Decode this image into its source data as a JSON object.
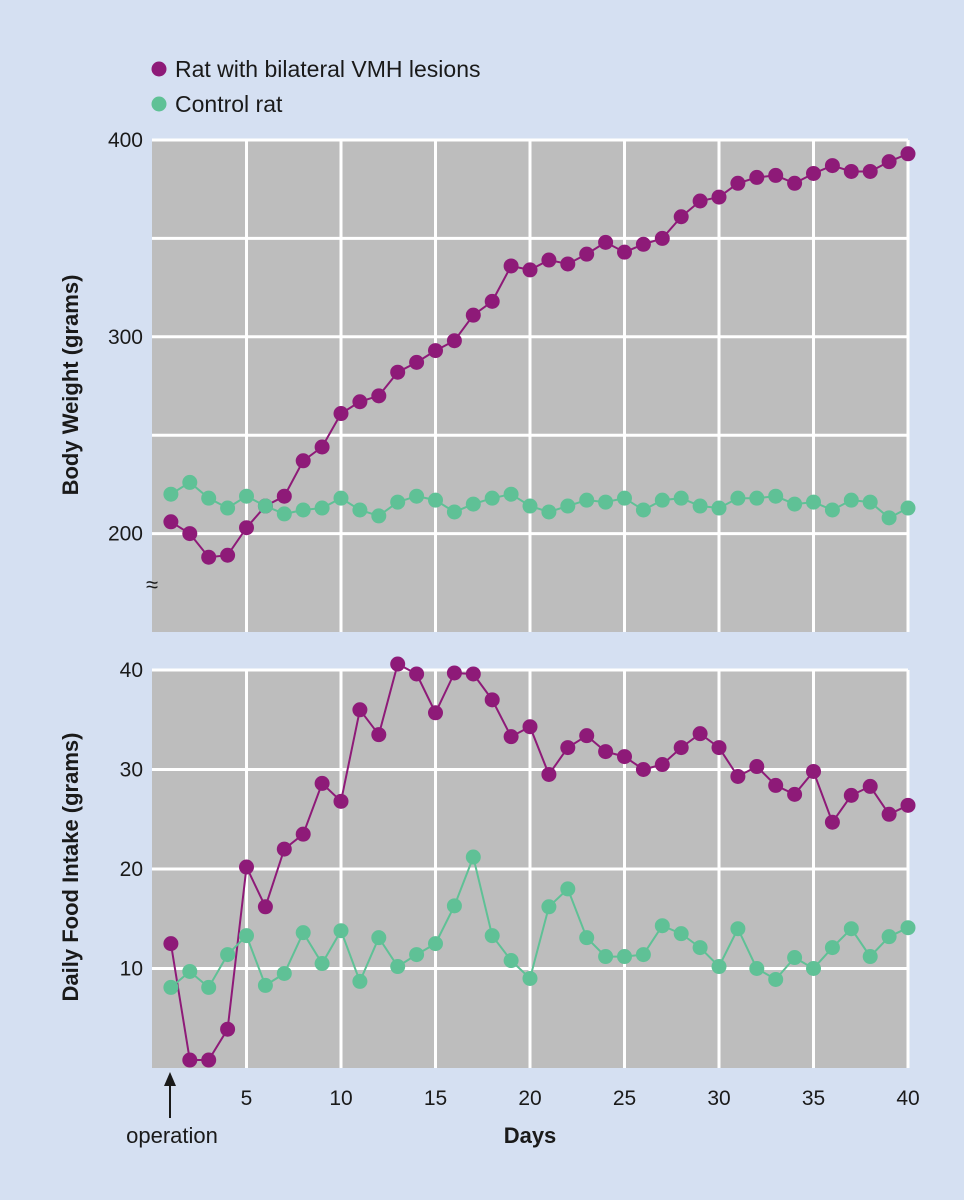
{
  "legend": {
    "vmh": "Rat with bilateral VMH lesions",
    "control": "Control rat"
  },
  "colors": {
    "vmh": "#8e1a78",
    "control": "#5fc196",
    "plot_bg": "#bdbdbd",
    "grid": "#ffffff",
    "page_bg": "#d5e0f2"
  },
  "annotations": {
    "operation": "operation",
    "axis_break": "≈"
  },
  "chart_data": [
    {
      "type": "line",
      "title": "",
      "xlabel": "",
      "ylabel": "Body Weight (grams)",
      "xlim": [
        0,
        40
      ],
      "ylim": [
        150,
        400
      ],
      "yticks": [
        200,
        300,
        400
      ],
      "y_gridlines": [
        200,
        250,
        300,
        350,
        400
      ],
      "x_gridlines": [
        5,
        10,
        15,
        20,
        25,
        30,
        35,
        40
      ],
      "grid": true,
      "axis_break": true,
      "series": [
        {
          "key": "vmh",
          "name": "Rat with bilateral VMH lesions",
          "x": [
            1,
            2,
            3,
            4,
            5,
            6,
            7,
            8,
            9,
            10,
            11,
            12,
            13,
            14,
            15,
            16,
            17,
            18,
            19,
            20,
            21,
            22,
            23,
            24,
            25,
            26,
            27,
            28,
            29,
            30,
            31,
            32,
            33,
            34,
            35,
            36,
            37,
            38,
            39,
            40
          ],
          "values": [
            206,
            200,
            188,
            189,
            203,
            214,
            219,
            237,
            244,
            261,
            267,
            270,
            282,
            287,
            293,
            298,
            311,
            318,
            336,
            334,
            339,
            337,
            342,
            348,
            343,
            347,
            350,
            361,
            369,
            371,
            378,
            381,
            382,
            378,
            383,
            387,
            384,
            384,
            389,
            393
          ]
        },
        {
          "key": "control",
          "name": "Control rat",
          "x": [
            1,
            2,
            3,
            4,
            5,
            6,
            7,
            8,
            9,
            10,
            11,
            12,
            13,
            14,
            15,
            16,
            17,
            18,
            19,
            20,
            21,
            22,
            23,
            24,
            25,
            26,
            27,
            28,
            29,
            30,
            31,
            32,
            33,
            34,
            35,
            36,
            37,
            38,
            39,
            40
          ],
          "values": [
            220,
            226,
            218,
            213,
            219,
            214,
            210,
            212,
            213,
            218,
            212,
            209,
            216,
            219,
            217,
            211,
            215,
            218,
            220,
            214,
            211,
            214,
            217,
            216,
            218,
            212,
            217,
            218,
            214,
            213,
            218,
            218,
            219,
            215,
            216,
            212,
            217,
            216,
            208,
            213
          ]
        }
      ]
    },
    {
      "type": "line",
      "title": "",
      "xlabel": "Days",
      "ylabel": "Daily Food Intake (grams)",
      "xlim": [
        0,
        40
      ],
      "ylim": [
        0,
        40
      ],
      "xticks": [
        5,
        10,
        15,
        20,
        25,
        30,
        35,
        40
      ],
      "yticks": [
        10,
        20,
        30,
        40
      ],
      "y_gridlines": [
        10,
        20,
        30,
        40
      ],
      "x_gridlines": [
        5,
        10,
        15,
        20,
        25,
        30,
        35,
        40
      ],
      "grid": true,
      "series": [
        {
          "key": "vmh",
          "name": "Rat with bilateral VMH lesions",
          "x": [
            1,
            2,
            3,
            4,
            5,
            6,
            7,
            8,
            9,
            10,
            11,
            12,
            13,
            14,
            15,
            16,
            17,
            18,
            19,
            20,
            21,
            22,
            23,
            24,
            25,
            26,
            27,
            28,
            29,
            30,
            31,
            32,
            33,
            34,
            35,
            36,
            37,
            38,
            39,
            40
          ],
          "values": [
            12.5,
            0.8,
            0.8,
            3.9,
            20.2,
            16.2,
            22.0,
            23.5,
            28.6,
            26.8,
            36.0,
            33.5,
            40.6,
            39.6,
            35.7,
            39.7,
            39.6,
            37.0,
            33.3,
            34.3,
            29.5,
            32.2,
            33.4,
            31.8,
            31.3,
            30.0,
            30.5,
            32.2,
            33.6,
            32.2,
            29.3,
            30.3,
            28.4,
            27.5,
            29.8,
            24.7,
            27.4,
            28.3,
            25.5,
            26.4
          ]
        },
        {
          "key": "control",
          "name": "Control rat",
          "x": [
            1,
            2,
            3,
            4,
            5,
            6,
            7,
            8,
            9,
            10,
            11,
            12,
            13,
            14,
            15,
            16,
            17,
            18,
            19,
            20,
            21,
            22,
            23,
            24,
            25,
            26,
            27,
            28,
            29,
            30,
            31,
            32,
            33,
            34,
            35,
            36,
            37,
            38,
            39,
            40
          ],
          "values": [
            8.1,
            9.7,
            8.1,
            11.4,
            13.3,
            8.3,
            9.5,
            13.6,
            10.5,
            13.8,
            8.7,
            13.1,
            10.2,
            11.4,
            12.5,
            16.3,
            21.2,
            13.3,
            10.8,
            9.0,
            16.2,
            18.0,
            13.1,
            11.2,
            11.2,
            11.4,
            14.3,
            13.5,
            12.1,
            10.2,
            14.0,
            10.0,
            8.9,
            11.1,
            10.0,
            12.1,
            14.0,
            11.2,
            13.2,
            14.1
          ]
        }
      ]
    }
  ]
}
